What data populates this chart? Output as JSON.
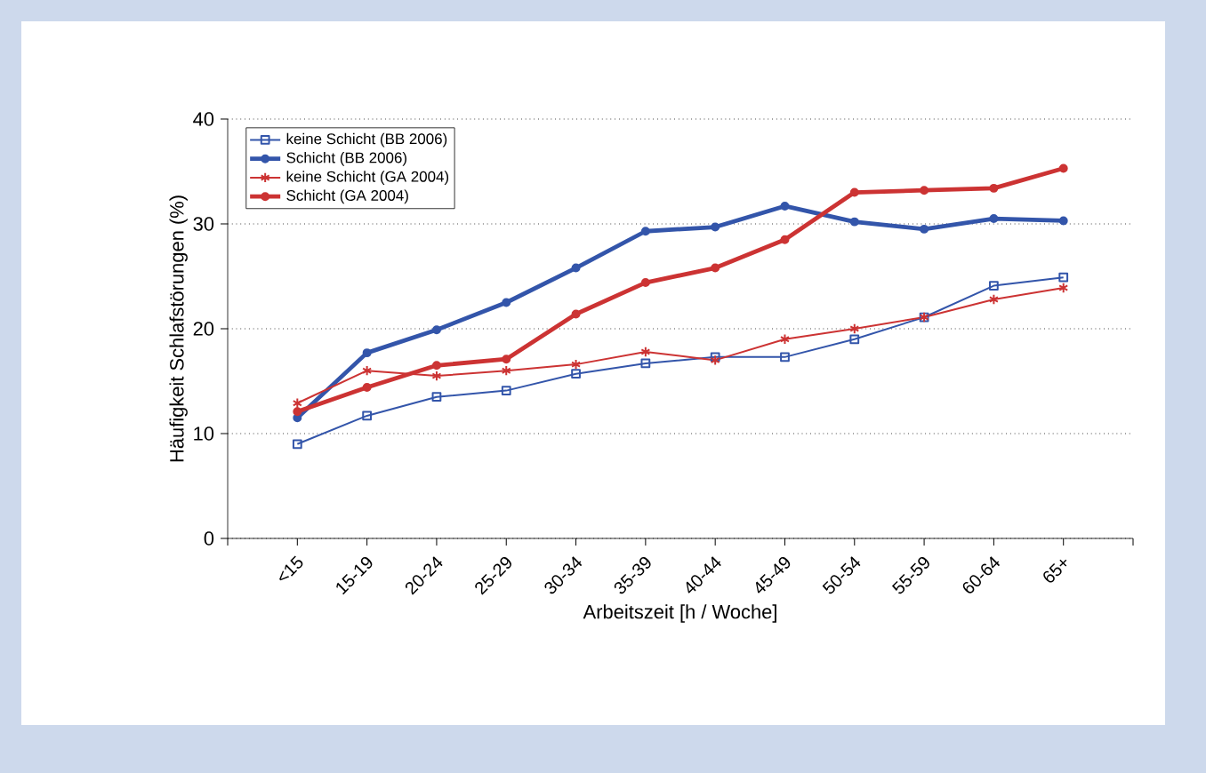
{
  "chart_data": {
    "type": "line",
    "xlabel": "Arbeitszeit [h / Woche]",
    "ylabel": "Häufigkeit Schlafstörungen (%)",
    "categories": [
      "<15",
      "15-19",
      "20-24",
      "25-29",
      "30-34",
      "35-39",
      "40-44",
      "45-49",
      "50-54",
      "55-59",
      "60-64",
      "65+"
    ],
    "series": [
      {
        "name": "keine Schicht (BB 2006)",
        "color": "#3355aa",
        "marker": "square",
        "values": [
          9.0,
          11.7,
          13.5,
          14.1,
          15.7,
          16.7,
          17.3,
          17.3,
          19.0,
          21.1,
          24.1,
          24.9
        ]
      },
      {
        "name": "Schicht (BB 2006)",
        "color": "#3355aa",
        "marker": "circle",
        "values": [
          11.5,
          17.7,
          19.9,
          22.5,
          25.8,
          29.3,
          29.7,
          31.7,
          30.2,
          29.5,
          30.5,
          30.3
        ]
      },
      {
        "name": "keine Schicht (GA 2004)",
        "color": "#cc3333",
        "marker": "cross",
        "values": [
          12.9,
          16.0,
          15.5,
          16.0,
          16.6,
          17.8,
          17.0,
          19.0,
          20.0,
          21.1,
          22.8,
          23.9
        ]
      },
      {
        "name": "Schicht (GA 2004)",
        "color": "#cc3333",
        "marker": "circle",
        "values": [
          12.1,
          14.4,
          16.5,
          17.1,
          21.4,
          24.4,
          25.8,
          28.5,
          33.0,
          33.2,
          33.4,
          35.3
        ]
      }
    ],
    "ylim": [
      0,
      40
    ],
    "yticks": [
      0,
      10,
      20,
      30,
      40
    ],
    "grid": "y",
    "legend": "top left",
    "line_style": "solid"
  }
}
